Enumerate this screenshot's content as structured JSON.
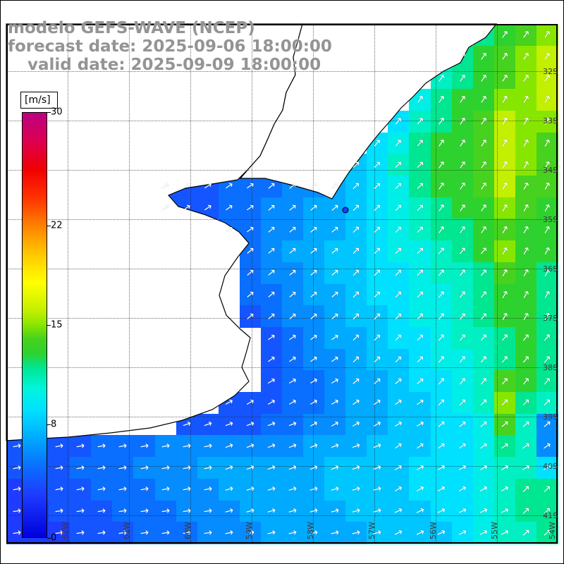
{
  "title": {
    "line1": "modelo GEFS-WAVE (NCEP)",
    "line2": "forecast date: 2025-09-06 18:00:00",
    "line3": "valid date: 2025-09-09 18:00:00",
    "color": "#949494"
  },
  "colorbar": {
    "unit_label": "[m/s]",
    "min": 0,
    "max": 30,
    "ticks": [
      30,
      22,
      15,
      8,
      0
    ],
    "stops": [
      [
        0,
        "#0000dc"
      ],
      [
        3,
        "#1e3cff"
      ],
      [
        5,
        "#0a6eff"
      ],
      [
        7,
        "#00aaff"
      ],
      [
        9,
        "#00e1ff"
      ],
      [
        10.5,
        "#00f5dc"
      ],
      [
        12,
        "#00e691"
      ],
      [
        13,
        "#2ed22e"
      ],
      [
        14,
        "#46d21e"
      ],
      [
        15,
        "#87e600"
      ],
      [
        16,
        "#c3ef00"
      ],
      [
        18,
        "#ffff00"
      ],
      [
        20,
        "#ffc800"
      ],
      [
        22,
        "#ff8200"
      ],
      [
        24,
        "#ff3200"
      ],
      [
        26,
        "#f00000"
      ],
      [
        28,
        "#dc0050"
      ],
      [
        30,
        "#be0082"
      ]
    ]
  },
  "map": {
    "lat_labels": [
      "32S",
      "33S",
      "34S",
      "35S",
      "36S",
      "37S",
      "38S",
      "39S",
      "40S",
      "41S"
    ],
    "lon_labels": [
      "62W",
      "61W",
      "60W",
      "59W",
      "58W",
      "57W",
      "56W",
      "55W",
      "54W"
    ],
    "arrow_color": "#ffffff",
    "land_color": "#ffffff",
    "coast_color": "#000000"
  },
  "chart_data": {
    "type": "heatmap",
    "title": "GEFS-WAVE (NCEP) wind speed field",
    "units": "m/s",
    "value_range": [
      0,
      30
    ],
    "cols": 26,
    "rows": 24,
    "legend_position": "left",
    "grid": true,
    "speed": [
      [
        null,
        null,
        null,
        null,
        null,
        null,
        null,
        null,
        null,
        null,
        null,
        null,
        null,
        null,
        null,
        null,
        null,
        null,
        null,
        null,
        null,
        null,
        12,
        13,
        14,
        15
      ],
      [
        null,
        null,
        null,
        null,
        null,
        null,
        null,
        null,
        null,
        null,
        null,
        null,
        null,
        null,
        null,
        null,
        null,
        null,
        null,
        null,
        null,
        12,
        13,
        14,
        15,
        16
      ],
      [
        null,
        null,
        null,
        null,
        null,
        null,
        null,
        null,
        null,
        null,
        null,
        null,
        null,
        null,
        null,
        null,
        null,
        null,
        null,
        null,
        11,
        12,
        13,
        14,
        15,
        16
      ],
      [
        null,
        null,
        null,
        null,
        null,
        null,
        null,
        null,
        null,
        null,
        null,
        null,
        null,
        null,
        null,
        null,
        null,
        null,
        null,
        10,
        12,
        13,
        13,
        15,
        15,
        16
      ],
      [
        null,
        null,
        null,
        null,
        null,
        null,
        null,
        null,
        null,
        null,
        null,
        null,
        null,
        null,
        null,
        null,
        null,
        null,
        9,
        11,
        12,
        13,
        14,
        16,
        15,
        15
      ],
      [
        null,
        null,
        null,
        null,
        null,
        null,
        null,
        null,
        null,
        null,
        null,
        null,
        null,
        null,
        null,
        null,
        null,
        9,
        10,
        12,
        13,
        13,
        14,
        16,
        15,
        14
      ],
      [
        null,
        null,
        null,
        null,
        null,
        null,
        null,
        null,
        null,
        null,
        null,
        null,
        null,
        null,
        null,
        null,
        8,
        9,
        11,
        12,
        13,
        13,
        14,
        16,
        15,
        14
      ],
      [
        null,
        null,
        null,
        null,
        null,
        null,
        null,
        4,
        4,
        4,
        5,
        5,
        5,
        6,
        6,
        7,
        8,
        9,
        10,
        12,
        13,
        13,
        14,
        16,
        14,
        14
      ],
      [
        null,
        null,
        null,
        null,
        null,
        null,
        null,
        4,
        4,
        4,
        5,
        5,
        6,
        6,
        7,
        7,
        8,
        9,
        10,
        11,
        12,
        13,
        13,
        15,
        14,
        13
      ],
      [
        null,
        null,
        null,
        null,
        null,
        null,
        null,
        null,
        null,
        null,
        5,
        5,
        6,
        6,
        7,
        7,
        8,
        9,
        10,
        11,
        12,
        12,
        13,
        14,
        13,
        13
      ],
      [
        null,
        null,
        null,
        null,
        null,
        null,
        null,
        null,
        null,
        null,
        null,
        5,
        6,
        7,
        7,
        8,
        8,
        9,
        10,
        10,
        11,
        12,
        13,
        15,
        13,
        13
      ],
      [
        null,
        null,
        null,
        null,
        null,
        null,
        null,
        null,
        null,
        null,
        null,
        5,
        6,
        6,
        7,
        8,
        8,
        9,
        9,
        10,
        11,
        11,
        12,
        14,
        13,
        12
      ],
      [
        null,
        null,
        null,
        null,
        null,
        null,
        null,
        null,
        null,
        null,
        null,
        5,
        5,
        6,
        7,
        7,
        8,
        9,
        9,
        10,
        10,
        11,
        12,
        13,
        13,
        12
      ],
      [
        null,
        null,
        null,
        null,
        null,
        null,
        null,
        null,
        null,
        null,
        null,
        4,
        5,
        6,
        6,
        7,
        8,
        8,
        9,
        10,
        10,
        11,
        12,
        13,
        13,
        12
      ],
      [
        null,
        null,
        null,
        null,
        null,
        null,
        null,
        null,
        null,
        null,
        null,
        null,
        4,
        5,
        6,
        7,
        7,
        8,
        9,
        9,
        10,
        11,
        11,
        12,
        13,
        12
      ],
      [
        null,
        null,
        null,
        null,
        null,
        null,
        null,
        null,
        null,
        null,
        null,
        null,
        4,
        5,
        6,
        6,
        7,
        8,
        8,
        9,
        10,
        10,
        11,
        12,
        13,
        12
      ],
      [
        null,
        null,
        null,
        null,
        null,
        null,
        null,
        null,
        null,
        null,
        null,
        null,
        4,
        5,
        5,
        6,
        7,
        7,
        8,
        9,
        9,
        10,
        11,
        14,
        13,
        12
      ],
      [
        null,
        null,
        null,
        null,
        null,
        null,
        null,
        null,
        null,
        null,
        4,
        4,
        4,
        5,
        5,
        6,
        7,
        7,
        8,
        8,
        9,
        10,
        11,
        15,
        12,
        11
      ],
      [
        null,
        null,
        null,
        null,
        null,
        null,
        null,
        null,
        4,
        4,
        4,
        4,
        5,
        5,
        6,
        6,
        7,
        7,
        8,
        8,
        9,
        9,
        10,
        14,
        11,
        6
      ],
      [
        4,
        4,
        4,
        4,
        5,
        5,
        5,
        6,
        6,
        6,
        6,
        6,
        6,
        6,
        7,
        7,
        7,
        8,
        8,
        8,
        9,
        9,
        10,
        12,
        11,
        6
      ],
      [
        4,
        4,
        4,
        5,
        5,
        5,
        6,
        6,
        6,
        7,
        7,
        7,
        7,
        7,
        7,
        8,
        8,
        8,
        8,
        9,
        9,
        9,
        10,
        11,
        11,
        9
      ],
      [
        3,
        4,
        4,
        4,
        5,
        5,
        5,
        6,
        6,
        6,
        7,
        7,
        7,
        7,
        7,
        8,
        8,
        8,
        8,
        9,
        9,
        9,
        10,
        11,
        12,
        12
      ],
      [
        3,
        3,
        4,
        4,
        4,
        5,
        5,
        5,
        6,
        6,
        6,
        7,
        7,
        7,
        7,
        7,
        8,
        8,
        8,
        8,
        9,
        9,
        10,
        11,
        12,
        12
      ],
      [
        3,
        3,
        3,
        4,
        4,
        4,
        5,
        5,
        5,
        6,
        6,
        6,
        7,
        7,
        7,
        7,
        7,
        8,
        8,
        8,
        8,
        9,
        10,
        11,
        11,
        12
      ]
    ],
    "dir_deg": [
      [
        55,
        55,
        55,
        55,
        55,
        55,
        55,
        55,
        55,
        55,
        55,
        55,
        55,
        55,
        55,
        55,
        55,
        55,
        55,
        55,
        55,
        55,
        55,
        55,
        55,
        55
      ],
      [
        55,
        55,
        55,
        55,
        55,
        55,
        55,
        55,
        55,
        55,
        55,
        55,
        55,
        55,
        55,
        55,
        55,
        55,
        55,
        55,
        55,
        55,
        55,
        55,
        55,
        55
      ],
      [
        55,
        55,
        55,
        55,
        55,
        55,
        55,
        55,
        55,
        55,
        55,
        55,
        55,
        55,
        55,
        55,
        55,
        55,
        55,
        55,
        55,
        55,
        55,
        55,
        55,
        55
      ],
      [
        55,
        55,
        55,
        55,
        55,
        55,
        55,
        55,
        55,
        55,
        55,
        55,
        55,
        55,
        55,
        55,
        55,
        55,
        55,
        55,
        55,
        55,
        55,
        60,
        60,
        60
      ],
      [
        50,
        50,
        50,
        50,
        50,
        50,
        50,
        50,
        50,
        50,
        50,
        50,
        50,
        50,
        50,
        50,
        50,
        50,
        50,
        50,
        55,
        55,
        55,
        60,
        60,
        60
      ],
      [
        50,
        50,
        50,
        50,
        50,
        50,
        50,
        50,
        50,
        50,
        50,
        50,
        50,
        50,
        50,
        50,
        50,
        50,
        50,
        50,
        55,
        55,
        55,
        60,
        60,
        60
      ],
      [
        45,
        45,
        45,
        45,
        45,
        45,
        45,
        45,
        45,
        45,
        45,
        45,
        45,
        45,
        45,
        45,
        45,
        45,
        45,
        45,
        55,
        55,
        55,
        60,
        60,
        60
      ],
      [
        35,
        35,
        35,
        35,
        35,
        35,
        35,
        35,
        35,
        35,
        35,
        35,
        40,
        40,
        40,
        40,
        45,
        45,
        45,
        45,
        55,
        55,
        55,
        60,
        60,
        60
      ],
      [
        35,
        35,
        35,
        35,
        35,
        35,
        35,
        35,
        35,
        35,
        35,
        35,
        40,
        40,
        40,
        40,
        45,
        45,
        45,
        45,
        55,
        55,
        55,
        60,
        60,
        60
      ],
      [
        35,
        35,
        35,
        35,
        35,
        35,
        35,
        35,
        35,
        35,
        35,
        35,
        40,
        40,
        40,
        40,
        45,
        45,
        45,
        45,
        55,
        55,
        55,
        60,
        60,
        60
      ],
      [
        40,
        40,
        40,
        40,
        40,
        40,
        40,
        40,
        40,
        40,
        40,
        40,
        40,
        40,
        40,
        40,
        45,
        45,
        45,
        45,
        50,
        50,
        50,
        60,
        60,
        60
      ],
      [
        40,
        40,
        40,
        40,
        40,
        40,
        40,
        40,
        40,
        40,
        40,
        40,
        40,
        40,
        40,
        40,
        45,
        45,
        45,
        45,
        50,
        50,
        50,
        60,
        60,
        60
      ],
      [
        40,
        40,
        40,
        40,
        40,
        40,
        40,
        40,
        40,
        40,
        40,
        40,
        40,
        40,
        40,
        40,
        45,
        45,
        45,
        45,
        50,
        50,
        50,
        60,
        60,
        60
      ],
      [
        40,
        40,
        40,
        40,
        40,
        40,
        40,
        40,
        40,
        40,
        40,
        40,
        40,
        40,
        40,
        40,
        45,
        45,
        45,
        45,
        50,
        50,
        50,
        60,
        60,
        60
      ],
      [
        35,
        35,
        35,
        35,
        35,
        35,
        35,
        35,
        35,
        35,
        35,
        35,
        35,
        35,
        35,
        35,
        45,
        45,
        45,
        45,
        50,
        50,
        50,
        50,
        50,
        50
      ],
      [
        35,
        35,
        35,
        35,
        35,
        35,
        35,
        35,
        35,
        35,
        35,
        35,
        35,
        35,
        35,
        35,
        45,
        45,
        45,
        45,
        50,
        50,
        50,
        50,
        50,
        50
      ],
      [
        30,
        30,
        30,
        30,
        30,
        30,
        30,
        30,
        30,
        30,
        30,
        30,
        30,
        30,
        30,
        30,
        40,
        40,
        40,
        40,
        50,
        50,
        50,
        50,
        50,
        50
      ],
      [
        30,
        30,
        30,
        30,
        30,
        30,
        30,
        30,
        30,
        30,
        30,
        30,
        30,
        30,
        30,
        30,
        35,
        35,
        35,
        35,
        45,
        45,
        45,
        45,
        45,
        45
      ],
      [
        20,
        20,
        20,
        20,
        20,
        20,
        20,
        20,
        20,
        20,
        20,
        20,
        20,
        20,
        30,
        30,
        30,
        30,
        30,
        30,
        40,
        40,
        40,
        40,
        40,
        40
      ],
      [
        10,
        10,
        10,
        10,
        10,
        10,
        10,
        10,
        10,
        10,
        20,
        20,
        20,
        20,
        20,
        20,
        20,
        20,
        35,
        35,
        35,
        35,
        35,
        35,
        35,
        35
      ],
      [
        10,
        10,
        10,
        10,
        10,
        10,
        10,
        10,
        10,
        10,
        20,
        20,
        20,
        20,
        20,
        20,
        20,
        20,
        30,
        30,
        30,
        30,
        30,
        30,
        30,
        30
      ],
      [
        10,
        10,
        10,
        10,
        10,
        10,
        10,
        10,
        10,
        10,
        15,
        15,
        15,
        15,
        15,
        15,
        15,
        15,
        30,
        30,
        30,
        30,
        30,
        30,
        45,
        45
      ],
      [
        8,
        8,
        8,
        8,
        8,
        8,
        8,
        8,
        8,
        8,
        15,
        15,
        15,
        15,
        15,
        15,
        15,
        15,
        25,
        25,
        25,
        25,
        25,
        25,
        45,
        45
      ],
      [
        8,
        8,
        8,
        8,
        8,
        8,
        8,
        8,
        8,
        8,
        12,
        12,
        12,
        12,
        12,
        12,
        12,
        12,
        25,
        25,
        25,
        25,
        25,
        25,
        40,
        40
      ]
    ]
  }
}
